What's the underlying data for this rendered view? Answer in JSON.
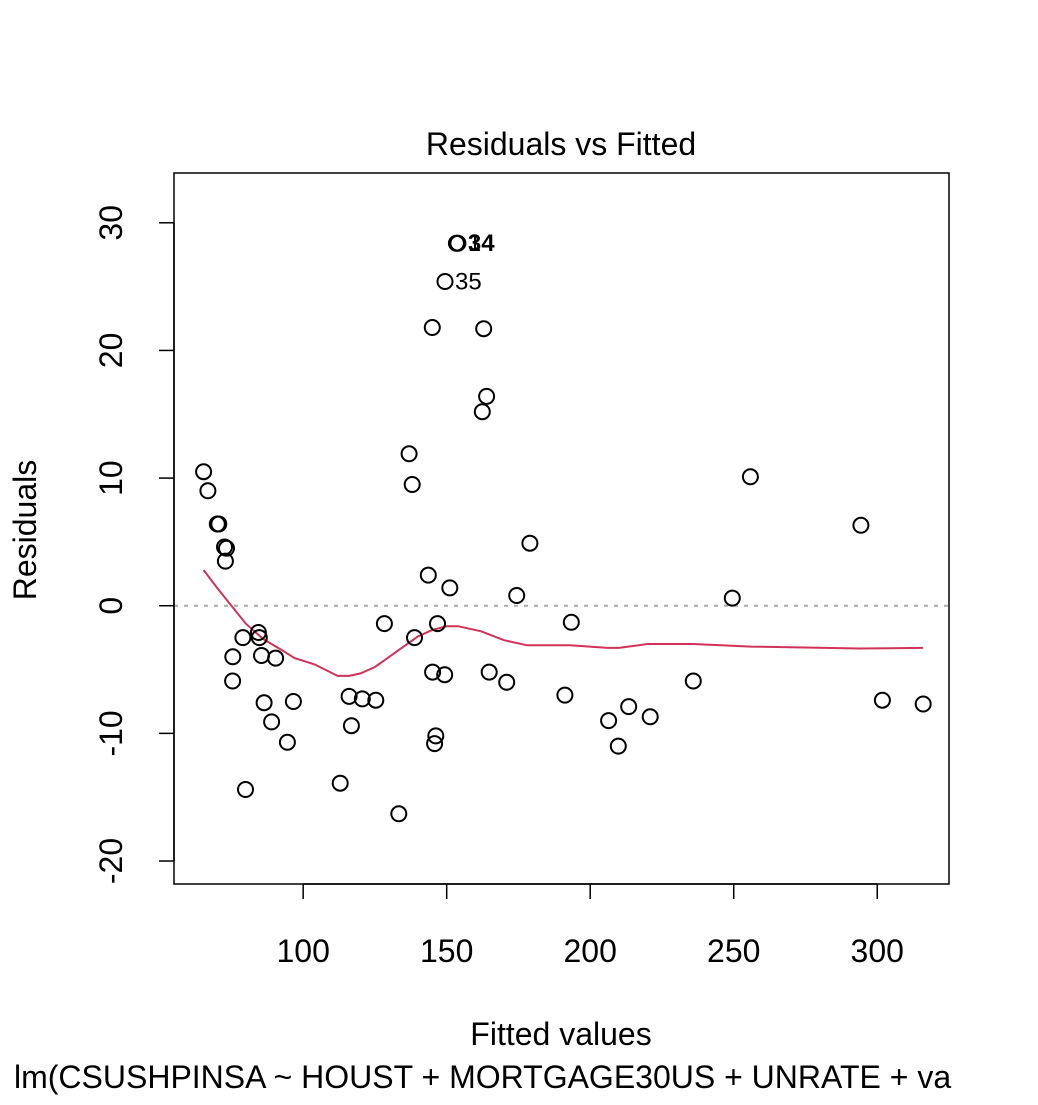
{
  "chart_data": {
    "type": "scatter",
    "title": "Residuals vs Fitted",
    "xlabel": "Fitted values",
    "ylabel": "Residuals",
    "subtitle": "lm(CSUSHPINSA ~ HOUST + MORTGAGE30US + UNRATE + va",
    "xlim": [
      55,
      325
    ],
    "ylim": [
      -21.8,
      33.9
    ],
    "xticks": [
      100,
      150,
      200,
      250,
      300
    ],
    "yticks": [
      -20,
      -10,
      0,
      10,
      20,
      30
    ],
    "reference_line": {
      "y": 0,
      "color": "#aaaaaa",
      "style": "dotted"
    },
    "point_color": "#000000",
    "smooth_color": "#d0325a",
    "points": [
      {
        "x": 65.3,
        "y": 10.5
      },
      {
        "x": 66.8,
        "y": 9.0
      },
      {
        "x": 70.1,
        "y": 6.4
      },
      {
        "x": 70.6,
        "y": 6.4
      },
      {
        "x": 72.6,
        "y": 4.6
      },
      {
        "x": 73.3,
        "y": 4.5
      },
      {
        "x": 72.9,
        "y": 3.5
      },
      {
        "x": 75.5,
        "y": -4.0
      },
      {
        "x": 75.4,
        "y": -5.9
      },
      {
        "x": 79.0,
        "y": -2.5
      },
      {
        "x": 79.9,
        "y": -14.4
      },
      {
        "x": 84.4,
        "y": -2.1
      },
      {
        "x": 84.7,
        "y": -2.5
      },
      {
        "x": 85.5,
        "y": -3.9
      },
      {
        "x": 86.4,
        "y": -7.6
      },
      {
        "x": 89.0,
        "y": -9.1
      },
      {
        "x": 90.4,
        "y": -4.1
      },
      {
        "x": 94.5,
        "y": -10.7
      },
      {
        "x": 96.6,
        "y": -7.5
      },
      {
        "x": 112.9,
        "y": -13.9
      },
      {
        "x": 116.0,
        "y": -7.1
      },
      {
        "x": 116.8,
        "y": -9.4
      },
      {
        "x": 120.6,
        "y": -7.3
      },
      {
        "x": 125.3,
        "y": -7.4
      },
      {
        "x": 128.3,
        "y": -1.4
      },
      {
        "x": 133.3,
        "y": -16.3
      },
      {
        "x": 136.9,
        "y": 11.9
      },
      {
        "x": 138.0,
        "y": 9.5
      },
      {
        "x": 138.8,
        "y": -2.5
      },
      {
        "x": 143.6,
        "y": 2.4
      },
      {
        "x": 145.0,
        "y": 21.8
      },
      {
        "x": 145.1,
        "y": -5.2
      },
      {
        "x": 145.8,
        "y": -10.8
      },
      {
        "x": 146.2,
        "y": -10.2
      },
      {
        "x": 146.8,
        "y": -1.4
      },
      {
        "x": 149.3,
        "y": -5.4
      },
      {
        "x": 149.4,
        "y": 25.4
      },
      {
        "x": 151.1,
        "y": 1.4
      },
      {
        "x": 153.4,
        "y": 28.4
      },
      {
        "x": 153.9,
        "y": 28.4
      },
      {
        "x": 162.4,
        "y": 15.2
      },
      {
        "x": 162.9,
        "y": 21.7
      },
      {
        "x": 163.9,
        "y": 16.4
      },
      {
        "x": 164.8,
        "y": -5.2
      },
      {
        "x": 170.9,
        "y": -6.0
      },
      {
        "x": 174.4,
        "y": 0.8
      },
      {
        "x": 179.0,
        "y": 4.9
      },
      {
        "x": 191.2,
        "y": -7.0
      },
      {
        "x": 193.4,
        "y": -1.3
      },
      {
        "x": 206.4,
        "y": -9.0
      },
      {
        "x": 209.8,
        "y": -11.0
      },
      {
        "x": 213.4,
        "y": -7.9
      },
      {
        "x": 220.9,
        "y": -8.7
      },
      {
        "x": 235.9,
        "y": -5.9
      },
      {
        "x": 249.5,
        "y": 0.6
      },
      {
        "x": 255.8,
        "y": 10.1
      },
      {
        "x": 294.3,
        "y": 6.3
      },
      {
        "x": 301.8,
        "y": -7.4
      },
      {
        "x": 316.0,
        "y": -7.7
      }
    ],
    "point_labels": [
      {
        "text": "34",
        "x": 153.9,
        "y": 28.4,
        "bold": true
      },
      {
        "text": "1",
        "x": 153.9,
        "y": 28.4,
        "bold": false
      },
      {
        "text": "35",
        "x": 149.4,
        "y": 25.4,
        "bold": false
      }
    ],
    "smooth_line": [
      {
        "x": 65.3,
        "y": 2.8
      },
      {
        "x": 70.0,
        "y": 1.4
      },
      {
        "x": 75.0,
        "y": 0.0
      },
      {
        "x": 80.0,
        "y": -1.4
      },
      {
        "x": 86.0,
        "y": -2.6
      },
      {
        "x": 92.0,
        "y": -3.4
      },
      {
        "x": 97.0,
        "y": -4.1
      },
      {
        "x": 104.0,
        "y": -4.6
      },
      {
        "x": 112.0,
        "y": -5.5
      },
      {
        "x": 116.0,
        "y": -5.5
      },
      {
        "x": 120.0,
        "y": -5.3
      },
      {
        "x": 125.0,
        "y": -4.8
      },
      {
        "x": 130.0,
        "y": -4.0
      },
      {
        "x": 135.0,
        "y": -3.2
      },
      {
        "x": 140.0,
        "y": -2.4
      },
      {
        "x": 145.0,
        "y": -1.9
      },
      {
        "x": 150.0,
        "y": -1.6
      },
      {
        "x": 154.0,
        "y": -1.6
      },
      {
        "x": 162.0,
        "y": -2.0
      },
      {
        "x": 170.0,
        "y": -2.7
      },
      {
        "x": 178.0,
        "y": -3.1
      },
      {
        "x": 193.0,
        "y": -3.1
      },
      {
        "x": 206.0,
        "y": -3.3
      },
      {
        "x": 210.0,
        "y": -3.3
      },
      {
        "x": 220.0,
        "y": -3.0
      },
      {
        "x": 236.0,
        "y": -3.0
      },
      {
        "x": 256.0,
        "y": -3.2
      },
      {
        "x": 294.0,
        "y": -3.35
      },
      {
        "x": 316.0,
        "y": -3.3
      }
    ]
  }
}
